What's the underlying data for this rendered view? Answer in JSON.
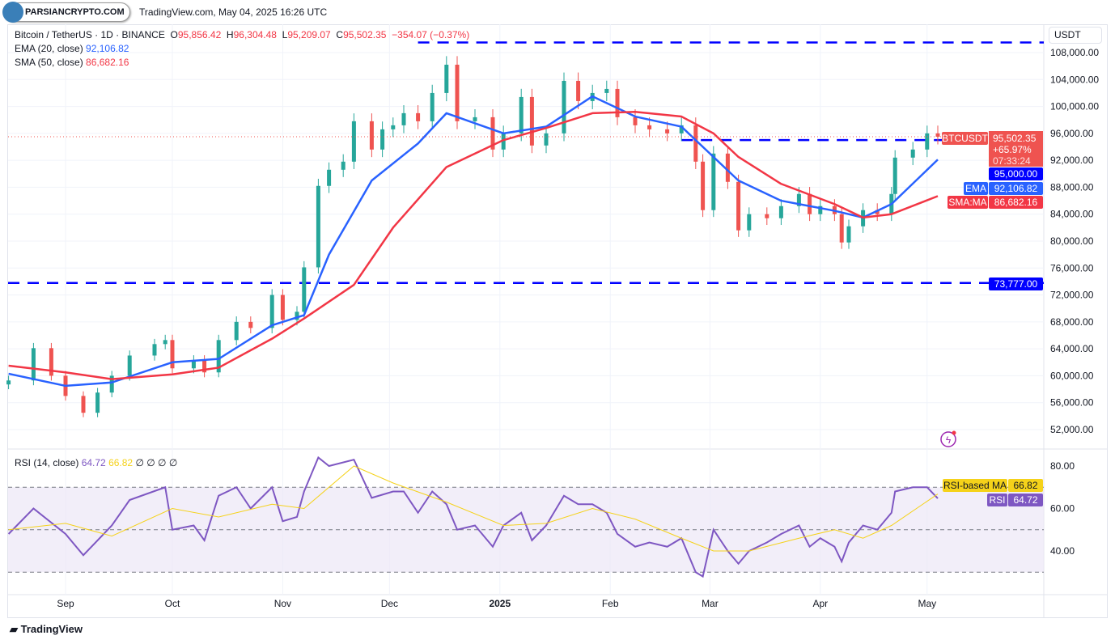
{
  "header": {
    "watermark": "PARSIANCRYPTO.COM",
    "stamp": "TradingView.com, May 04, 2025 16:26 UTC"
  },
  "legend": {
    "symbol": "Bitcoin / TetherUS · 1D · BINANCE",
    "o_label": "O",
    "o": "95,856.42",
    "h_label": "H",
    "h": "96,304.48",
    "l_label": "L",
    "l": "95,209.07",
    "c_label": "C",
    "c": "95,502.35",
    "change": "−354.07 (−0.37%)",
    "ema_label": "EMA (20, close)",
    "ema": "92,106.82",
    "sma_label": "SMA (50, close)",
    "sma": "86,682.16",
    "rsi_label": "RSI (14, close)",
    "rsi": "64.72",
    "rsi_ma": "66.82",
    "rsi_extra": "∅ ∅ ∅ ∅"
  },
  "currency_button": "USDT",
  "footer": {
    "brand": "TradingView"
  },
  "colors": {
    "up": "#26a69a",
    "down": "#ef5350",
    "ema": "#2962ff",
    "sma": "#f23645",
    "hline": "#0000ff",
    "rsi": "#7e57c2",
    "rsi_ma": "#f5d21a",
    "rsi_band": "#ede7f6"
  },
  "icons": [
    "lightning-alert-icon",
    "tradingview-logo-icon"
  ],
  "chart_data": [
    {
      "type": "candlestick",
      "title": "Bitcoin / TetherUS · 1D · BINANCE",
      "ylim": [
        50000,
        110500
      ],
      "x_ticks": [
        {
          "date": "2024-09-01",
          "label": "Sep"
        },
        {
          "date": "2024-10-01",
          "label": "Oct"
        },
        {
          "date": "2024-11-01",
          "label": "Nov"
        },
        {
          "date": "2024-12-01",
          "label": "Dec"
        },
        {
          "date": "2025-01-01",
          "label": "2025"
        },
        {
          "date": "2025-02-01",
          "label": "Feb"
        },
        {
          "date": "2025-03-01",
          "label": "Mar"
        },
        {
          "date": "2025-04-01",
          "label": "Apr"
        },
        {
          "date": "2025-05-01",
          "label": "May"
        }
      ],
      "y_ticks": [
        "108,000.00",
        "104,000.00",
        "100,000.00",
        "96,000.00",
        "92,000.00",
        "88,000.00",
        "84,000.00",
        "80,000.00",
        "76,000.00",
        "72,000.00",
        "68,000.00",
        "64,000.00",
        "60,000.00",
        "56,000.00",
        "52,000.00"
      ],
      "close_samples": [
        [
          "2024-08-16",
          59300
        ],
        [
          "2024-08-23",
          64100
        ],
        [
          "2024-08-28",
          60000
        ],
        [
          "2024-09-01",
          57000
        ],
        [
          "2024-09-06",
          54500
        ],
        [
          "2024-09-10",
          57500
        ],
        [
          "2024-09-14",
          60000
        ],
        [
          "2024-09-19",
          63000
        ],
        [
          "2024-09-26",
          64700
        ],
        [
          "2024-09-29",
          65300
        ],
        [
          "2024-10-01",
          61100
        ],
        [
          "2024-10-07",
          62300
        ],
        [
          "2024-10-10",
          60500
        ],
        [
          "2024-10-14",
          65300
        ],
        [
          "2024-10-19",
          68000
        ],
        [
          "2024-10-23",
          67100
        ],
        [
          "2024-10-29",
          72000
        ],
        [
          "2024-11-01",
          68300
        ],
        [
          "2024-11-05",
          69500
        ],
        [
          "2024-11-07",
          76100
        ],
        [
          "2024-11-11",
          88200
        ],
        [
          "2024-11-14",
          90600
        ],
        [
          "2024-11-18",
          91800
        ],
        [
          "2024-11-21",
          97800
        ],
        [
          "2024-11-26",
          93600
        ],
        [
          "2024-11-29",
          96600
        ],
        [
          "2024-12-02",
          97200
        ],
        [
          "2024-12-05",
          99000
        ],
        [
          "2024-12-09",
          97800
        ],
        [
          "2024-12-13",
          102000
        ],
        [
          "2024-12-17",
          106200
        ],
        [
          "2024-12-20",
          97800
        ],
        [
          "2024-12-25",
          98400
        ],
        [
          "2024-12-30",
          93600
        ],
        [
          "2025-01-02",
          96000
        ],
        [
          "2025-01-07",
          101400
        ],
        [
          "2025-01-10",
          94200
        ],
        [
          "2025-01-14",
          96000
        ],
        [
          "2025-01-19",
          103800
        ],
        [
          "2025-01-23",
          100800
        ],
        [
          "2025-01-27",
          102000
        ],
        [
          "2025-01-31",
          102600
        ],
        [
          "2025-02-03",
          98400
        ],
        [
          "2025-02-08",
          97200
        ],
        [
          "2025-02-12",
          96600
        ],
        [
          "2025-02-17",
          96000
        ],
        [
          "2025-02-21",
          97200
        ],
        [
          "2025-02-25",
          91800
        ],
        [
          "2025-02-27",
          84600
        ],
        [
          "2025-03-02",
          93000
        ],
        [
          "2025-03-06",
          88800
        ],
        [
          "2025-03-09",
          81600
        ],
        [
          "2025-03-12",
          84000
        ],
        [
          "2025-03-17",
          83400
        ],
        [
          "2025-03-21",
          85200
        ],
        [
          "2025-03-26",
          87000
        ],
        [
          "2025-03-29",
          84000
        ],
        [
          "2025-04-01",
          85200
        ],
        [
          "2025-04-05",
          84000
        ],
        [
          "2025-04-07",
          79800
        ],
        [
          "2025-04-09",
          82200
        ],
        [
          "2025-04-13",
          84600
        ],
        [
          "2025-04-17",
          84000
        ],
        [
          "2025-04-21",
          87000
        ],
        [
          "2025-04-22",
          92400
        ],
        [
          "2025-04-27",
          93600
        ],
        [
          "2025-05-01",
          96000
        ],
        [
          "2025-05-04",
          95502.35
        ]
      ],
      "series": [
        {
          "name": "EMA",
          "values": [
            [
              "2024-08-16",
              60300
            ],
            [
              "2024-09-01",
              58500
            ],
            [
              "2024-09-14",
              59000
            ],
            [
              "2024-10-01",
              62000
            ],
            [
              "2024-10-14",
              62500
            ],
            [
              "2024-10-29",
              67500
            ],
            [
              "2024-11-07",
              69000
            ],
            [
              "2024-11-14",
              78000
            ],
            [
              "2024-11-26",
              89000
            ],
            [
              "2024-12-09",
              94500
            ],
            [
              "2024-12-17",
              99000
            ],
            [
              "2025-01-02",
              96000
            ],
            [
              "2025-01-14",
              97000
            ],
            [
              "2025-01-27",
              101500
            ],
            [
              "2025-02-08",
              98500
            ],
            [
              "2025-02-21",
              97000
            ],
            [
              "2025-03-02",
              92500
            ],
            [
              "2025-03-09",
              89000
            ],
            [
              "2025-03-21",
              86000
            ],
            [
              "2025-04-05",
              84500
            ],
            [
              "2025-04-13",
              83500
            ],
            [
              "2025-04-21",
              85500
            ],
            [
              "2025-05-04",
              92106.82
            ]
          ]
        },
        {
          "name": "SMA:MA",
          "values": [
            [
              "2024-08-16",
              61500
            ],
            [
              "2024-09-01",
              60500
            ],
            [
              "2024-09-14",
              59500
            ],
            [
              "2024-10-01",
              60200
            ],
            [
              "2024-10-14",
              61200
            ],
            [
              "2024-10-29",
              65500
            ],
            [
              "2024-11-07",
              68500
            ],
            [
              "2024-11-21",
              73500
            ],
            [
              "2024-12-02",
              82000
            ],
            [
              "2024-12-17",
              91000
            ],
            [
              "2025-01-02",
              95000
            ],
            [
              "2025-01-14",
              96800
            ],
            [
              "2025-01-27",
              99000
            ],
            [
              "2025-02-08",
              99200
            ],
            [
              "2025-02-21",
              98500
            ],
            [
              "2025-03-02",
              96000
            ],
            [
              "2025-03-09",
              92500
            ],
            [
              "2025-03-21",
              88500
            ],
            [
              "2025-04-05",
              85500
            ],
            [
              "2025-04-13",
              83500
            ],
            [
              "2025-04-21",
              84000
            ],
            [
              "2025-05-04",
              86682.16
            ]
          ]
        }
      ],
      "horizontal_lines": [
        {
          "value": 109500,
          "from": "2024-12-09"
        },
        {
          "value": 95000,
          "label": "95,000.00",
          "from": "2025-02-21"
        },
        {
          "value": 73777,
          "label": "73,777.00"
        }
      ],
      "price_labels": [
        {
          "name": "BTCUSDT",
          "value": "95,502.35",
          "change": "+65.97%",
          "countdown": "07:33:24"
        },
        {
          "name": "EMA",
          "value": "92,106.82"
        },
        {
          "name": "SMA:MA",
          "value": "86,682.16"
        }
      ]
    },
    {
      "type": "line",
      "title": "RSI (14, close)",
      "ylim": [
        22,
        90
      ],
      "y_ticks": [
        "80.00",
        "60.00",
        "40.00"
      ],
      "bands": [
        30,
        50,
        70
      ],
      "series": [
        {
          "name": "RSI",
          "values": [
            [
              "2024-08-16",
              48
            ],
            [
              "2024-08-23",
              60
            ],
            [
              "2024-09-01",
              48
            ],
            [
              "2024-09-06",
              38
            ],
            [
              "2024-09-14",
              52
            ],
            [
              "2024-09-19",
              64
            ],
            [
              "2024-09-29",
              70
            ],
            [
              "2024-10-01",
              50
            ],
            [
              "2024-10-07",
              52
            ],
            [
              "2024-10-10",
              45
            ],
            [
              "2024-10-14",
              66
            ],
            [
              "2024-10-19",
              70
            ],
            [
              "2024-10-23",
              60
            ],
            [
              "2024-10-29",
              70
            ],
            [
              "2024-11-01",
              54
            ],
            [
              "2024-11-05",
              56
            ],
            [
              "2024-11-07",
              68
            ],
            [
              "2024-11-11",
              84
            ],
            [
              "2024-11-14",
              80
            ],
            [
              "2024-11-21",
              83
            ],
            [
              "2024-11-26",
              65
            ],
            [
              "2024-12-02",
              68
            ],
            [
              "2024-12-05",
              68
            ],
            [
              "2024-12-09",
              58
            ],
            [
              "2024-12-13",
              68
            ],
            [
              "2024-12-17",
              62
            ],
            [
              "2024-12-20",
              50
            ],
            [
              "2024-12-25",
              52
            ],
            [
              "2024-12-30",
              42
            ],
            [
              "2025-01-02",
              52
            ],
            [
              "2025-01-07",
              58
            ],
            [
              "2025-01-10",
              45
            ],
            [
              "2025-01-14",
              52
            ],
            [
              "2025-01-19",
              66
            ],
            [
              "2025-01-23",
              62
            ],
            [
              "2025-01-27",
              62
            ],
            [
              "2025-01-31",
              58
            ],
            [
              "2025-02-03",
              48
            ],
            [
              "2025-02-08",
              42
            ],
            [
              "2025-02-12",
              44
            ],
            [
              "2025-02-17",
              42
            ],
            [
              "2025-02-21",
              46
            ],
            [
              "2025-02-25",
              30
            ],
            [
              "2025-02-27",
              28
            ],
            [
              "2025-03-02",
              50
            ],
            [
              "2025-03-06",
              40
            ],
            [
              "2025-03-09",
              34
            ],
            [
              "2025-03-12",
              40
            ],
            [
              "2025-03-17",
              44
            ],
            [
              "2025-03-21",
              48
            ],
            [
              "2025-03-26",
              52
            ],
            [
              "2025-03-29",
              42
            ],
            [
              "2025-04-01",
              46
            ],
            [
              "2025-04-05",
              42
            ],
            [
              "2025-04-07",
              35
            ],
            [
              "2025-04-09",
              44
            ],
            [
              "2025-04-13",
              52
            ],
            [
              "2025-04-17",
              50
            ],
            [
              "2025-04-21",
              58
            ],
            [
              "2025-04-22",
              68
            ],
            [
              "2025-04-27",
              70
            ],
            [
              "2025-05-01",
              70
            ],
            [
              "2025-05-04",
              64.72
            ]
          ]
        },
        {
          "name": "RSI-based MA",
          "values": [
            [
              "2024-08-16",
              50
            ],
            [
              "2024-09-01",
              53
            ],
            [
              "2024-09-14",
              47
            ],
            [
              "2024-10-01",
              60
            ],
            [
              "2024-10-14",
              56
            ],
            [
              "2024-10-29",
              62
            ],
            [
              "2024-11-07",
              60
            ],
            [
              "2024-11-21",
              80
            ],
            [
              "2024-12-02",
              72
            ],
            [
              "2024-12-17",
              63
            ],
            [
              "2025-01-02",
              52
            ],
            [
              "2025-01-14",
              53
            ],
            [
              "2025-01-27",
              60
            ],
            [
              "2025-02-08",
              55
            ],
            [
              "2025-02-21",
              46
            ],
            [
              "2025-03-02",
              40
            ],
            [
              "2025-03-12",
              40
            ],
            [
              "2025-03-26",
              46
            ],
            [
              "2025-04-05",
              50
            ],
            [
              "2025-04-13",
              46
            ],
            [
              "2025-04-21",
              52
            ],
            [
              "2025-05-04",
              66.82
            ]
          ]
        }
      ],
      "price_labels": [
        {
          "name": "RSI-based MA",
          "value": "66.82"
        },
        {
          "name": "RSI",
          "value": "64.72"
        }
      ]
    }
  ]
}
